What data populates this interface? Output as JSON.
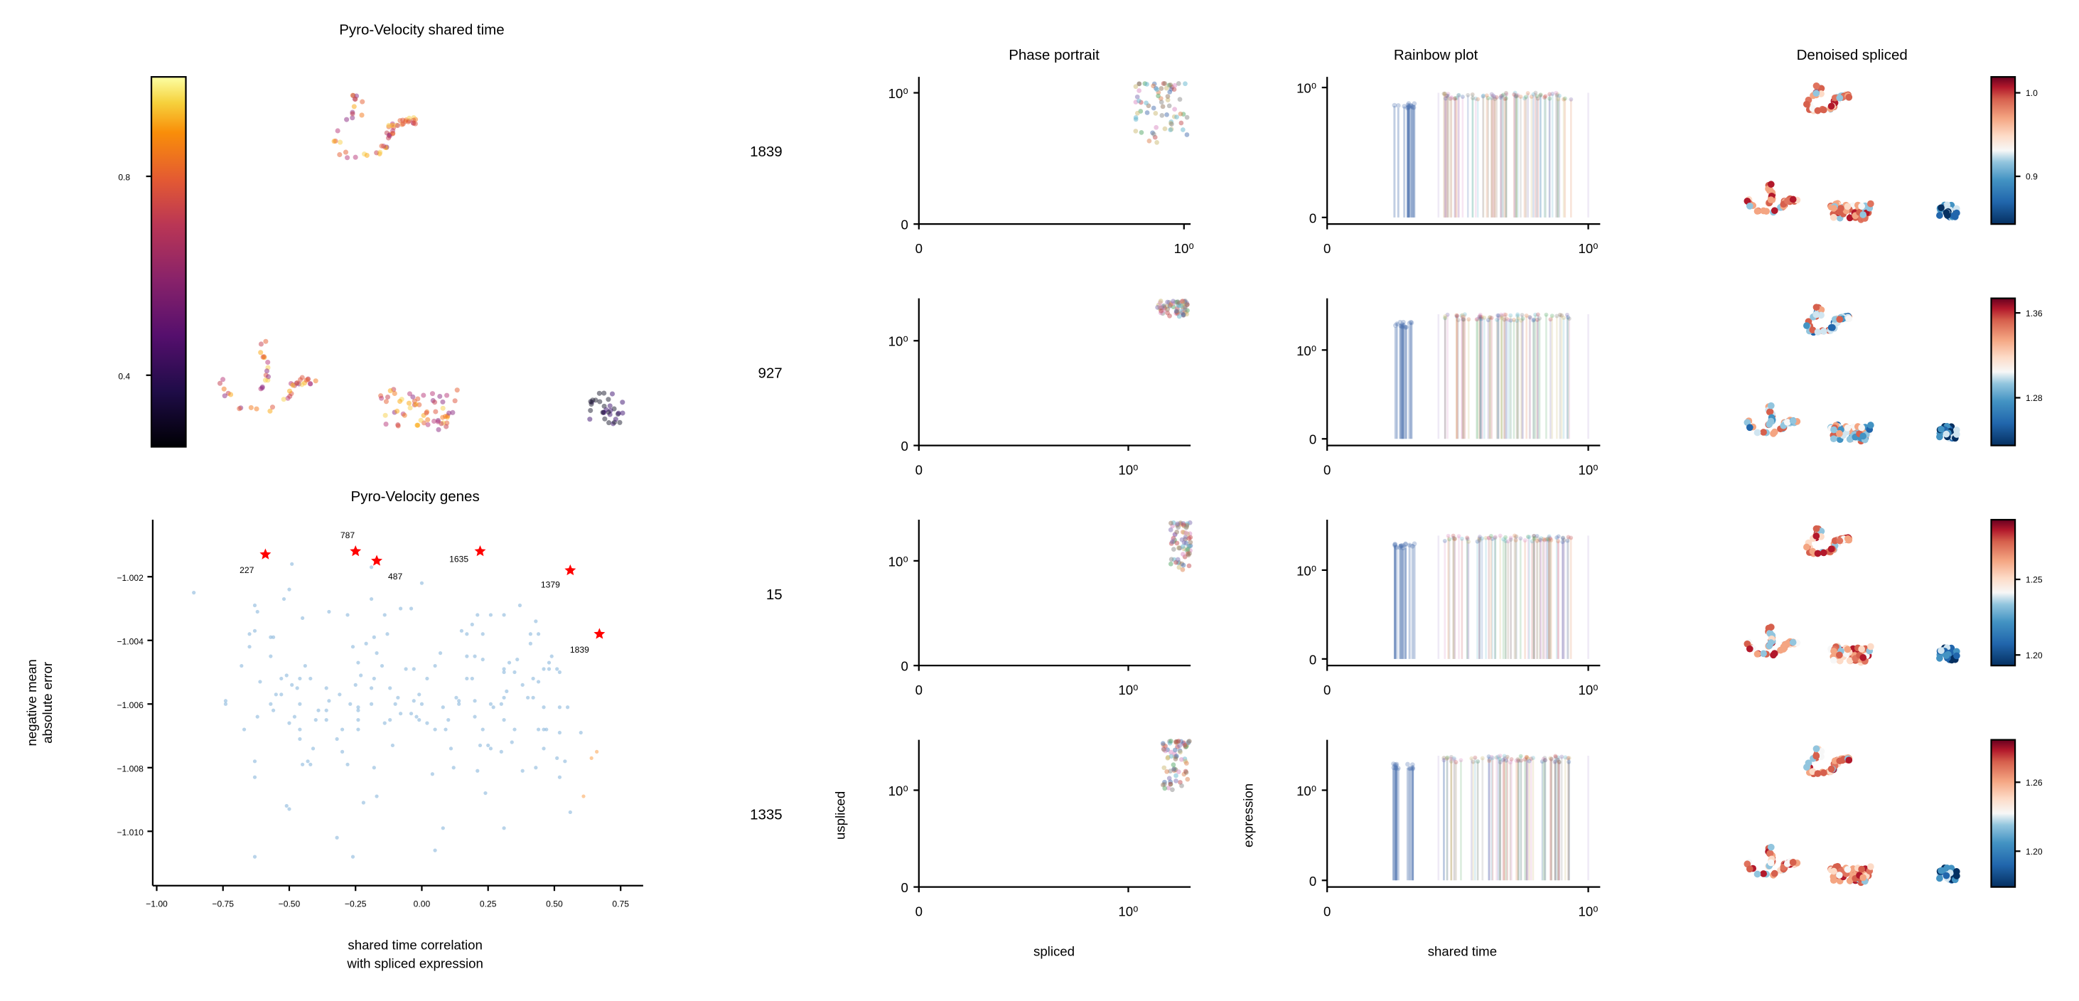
{
  "chart_data": [
    {
      "type": "scatter",
      "panel": "umap_shared_time",
      "title": "Pyro-Velocity shared time",
      "colorbar": {
        "colormap": "inferno",
        "ticks": [
          "0.8",
          "0.4"
        ]
      }
    },
    {
      "type": "scatter",
      "panel": "genes",
      "title": "Pyro-Velocity genes",
      "xlabel": [
        "shared time correlation",
        "with spliced expression"
      ],
      "ylabel": [
        "negative mean",
        "absolute error"
      ],
      "xlim": [
        -1.02,
        0.82
      ],
      "ylim": [
        -1.0118,
        -1.0004
      ],
      "xticks": [
        "-1.00",
        "-0.75",
        "-0.50",
        "-0.25",
        "0.00",
        "0.25",
        "0.50",
        "0.75"
      ],
      "xtick_values": [
        -1.0,
        -0.75,
        -0.5,
        -0.25,
        0.0,
        0.25,
        0.5,
        0.75
      ],
      "yticks": [
        "-1.002",
        "-1.004",
        "-1.006",
        "-1.008",
        "-1.010"
      ],
      "ytick_values": [
        -1.002,
        -1.004,
        -1.006,
        -1.008,
        -1.01
      ],
      "colors": {
        "default": "#7fb0d8",
        "selected": "#ff0000",
        "other": "#fdbf86"
      },
      "highlighted": [
        {
          "gene": "227",
          "x": -0.59,
          "y": -1.0013
        },
        {
          "gene": "787",
          "x": -0.25,
          "y": -1.0012
        },
        {
          "gene": "487",
          "x": -0.17,
          "y": -1.0015
        },
        {
          "gene": "1635",
          "x": 0.22,
          "y": -1.0012
        },
        {
          "gene": "1379",
          "x": 0.56,
          "y": -1.0018
        },
        {
          "gene": "1839",
          "x": 0.67,
          "y": -1.0038
        }
      ],
      "other_points": [
        [
          0.66,
          -1.0075
        ],
        [
          0.64,
          -1.0077
        ],
        [
          0.61,
          -1.0089
        ]
      ],
      "points": [
        [
          -0.86,
          -1.0025
        ],
        [
          -0.49,
          -1.0016
        ],
        [
          -0.5,
          -1.0024
        ],
        [
          -0.52,
          -1.0027
        ],
        [
          -0.63,
          -1.0029
        ],
        [
          -0.62,
          -1.0031
        ],
        [
          -0.35,
          -1.0031
        ],
        [
          -0.28,
          -1.0032
        ],
        [
          -0.45,
          -1.0033
        ],
        [
          -0.19,
          -1.0017
        ],
        [
          -0.19,
          -1.0027
        ],
        [
          -0.14,
          -1.0032
        ],
        [
          -0.08,
          -1.003
        ],
        [
          -0.04,
          -1.003
        ],
        [
          0.0,
          -1.0022
        ],
        [
          -0.65,
          -1.0038
        ],
        [
          -0.63,
          -1.0037
        ],
        [
          -0.57,
          -1.0039
        ],
        [
          -0.56,
          -1.0039
        ],
        [
          -0.65,
          -1.0042
        ],
        [
          -0.57,
          -1.0045
        ],
        [
          -0.68,
          -1.0048
        ],
        [
          -0.61,
          -1.0053
        ],
        [
          -0.51,
          -1.0051
        ],
        [
          -0.53,
          -1.0052
        ],
        [
          -0.49,
          -1.0054
        ],
        [
          -0.47,
          -1.0055
        ],
        [
          -0.44,
          -1.0048
        ],
        [
          -0.46,
          -1.0052
        ],
        [
          -0.42,
          -1.0052
        ],
        [
          -0.55,
          -1.0057
        ],
        [
          -0.53,
          -1.0057
        ],
        [
          -0.26,
          -1.0042
        ],
        [
          -0.24,
          -1.0047
        ],
        [
          -0.23,
          -1.0051
        ],
        [
          -0.25,
          -1.0054
        ],
        [
          -0.21,
          -1.0041
        ],
        [
          -0.18,
          -1.0039
        ],
        [
          -0.17,
          -1.0044
        ],
        [
          -0.15,
          -1.0048
        ],
        [
          -0.18,
          -1.0052
        ],
        [
          -0.13,
          -1.0038
        ],
        [
          -0.19,
          -1.0055
        ],
        [
          -0.12,
          -1.0055
        ],
        [
          -0.06,
          -1.0049
        ],
        [
          -0.03,
          -1.0049
        ],
        [
          0.02,
          -1.0052
        ],
        [
          0.05,
          -1.0048
        ],
        [
          0.07,
          -1.0044
        ],
        [
          -0.74,
          -1.0059
        ],
        [
          -0.74,
          -1.006
        ],
        [
          -0.62,
          -1.0064
        ],
        [
          -0.57,
          -1.006
        ],
        [
          -0.56,
          -1.0062
        ],
        [
          -0.46,
          -1.006
        ],
        [
          -0.48,
          -1.0064
        ],
        [
          -0.5,
          -1.0066
        ],
        [
          -0.36,
          -1.0055
        ],
        [
          -0.35,
          -1.0059
        ],
        [
          -0.39,
          -1.0062
        ],
        [
          -0.36,
          -1.0062
        ],
        [
          -0.4,
          -1.0065
        ],
        [
          -0.36,
          -1.0065
        ],
        [
          -0.31,
          -1.0057
        ],
        [
          -0.27,
          -1.006
        ],
        [
          -0.24,
          -1.0061
        ],
        [
          -0.24,
          -1.0062
        ],
        [
          -0.24,
          -1.0065
        ],
        [
          -0.19,
          -1.006
        ],
        [
          -0.14,
          -1.0066
        ],
        [
          -0.12,
          -1.0065
        ],
        [
          -0.09,
          -1.0058
        ],
        [
          -0.1,
          -1.006
        ],
        [
          -0.08,
          -1.0063
        ],
        [
          -0.04,
          -1.0063
        ],
        [
          -0.03,
          -1.0059
        ],
        [
          -0.01,
          -1.0057
        ],
        [
          0.0,
          -1.006
        ],
        [
          -0.02,
          -1.0064
        ],
        [
          -0.01,
          -1.0065
        ],
        [
          0.02,
          -1.0066
        ],
        [
          -0.67,
          -1.0068
        ],
        [
          -0.46,
          -1.0068
        ],
        [
          -0.3,
          -1.0068
        ],
        [
          -0.24,
          -1.0068
        ],
        [
          -0.46,
          -1.0071
        ],
        [
          -0.32,
          -1.0071
        ],
        [
          -0.41,
          -1.0074
        ],
        [
          -0.43,
          -1.0078
        ],
        [
          -0.3,
          -1.0075
        ],
        [
          -0.11,
          -1.0073
        ],
        [
          -0.63,
          -1.0078
        ],
        [
          -0.45,
          -1.0079
        ],
        [
          -0.42,
          -1.0079
        ],
        [
          -0.28,
          -1.0079
        ],
        [
          -0.18,
          -1.008
        ],
        [
          -0.63,
          -1.0083
        ],
        [
          -0.17,
          -1.0089
        ],
        [
          -0.22,
          -1.0091
        ],
        [
          -0.51,
          -1.0092
        ],
        [
          -0.5,
          -1.0093
        ],
        [
          -0.32,
          -1.0102
        ],
        [
          -0.63,
          -1.0108
        ],
        [
          -0.26,
          -1.0108
        ],
        [
          0.15,
          -1.0037
        ],
        [
          0.19,
          -1.0035
        ],
        [
          0.17,
          -1.0038
        ],
        [
          0.21,
          -1.0032
        ],
        [
          0.26,
          -1.0032
        ],
        [
          0.31,
          -1.0032
        ],
        [
          0.37,
          -1.0029
        ],
        [
          0.23,
          -1.0038
        ],
        [
          0.41,
          -1.0038
        ],
        [
          0.43,
          -1.0034
        ],
        [
          0.44,
          -1.0038
        ],
        [
          0.41,
          -1.0041
        ],
        [
          0.17,
          -1.0045
        ],
        [
          0.2,
          -1.0045
        ],
        [
          0.23,
          -1.0046
        ],
        [
          0.33,
          -1.0047
        ],
        [
          0.36,
          -1.0046
        ],
        [
          0.31,
          -1.0049
        ],
        [
          0.31,
          -1.005
        ],
        [
          0.35,
          -1.005
        ],
        [
          0.48,
          -1.0047
        ],
        [
          0.49,
          -1.0045
        ],
        [
          0.46,
          -1.0049
        ],
        [
          0.48,
          -1.0049
        ],
        [
          0.51,
          -1.0049
        ],
        [
          0.52,
          -1.005
        ],
        [
          0.17,
          -1.0052
        ],
        [
          0.19,
          -1.0052
        ],
        [
          0.42,
          -1.0052
        ],
        [
          0.44,
          -1.0053
        ],
        [
          0.38,
          -1.0054
        ],
        [
          0.32,
          -1.0056
        ],
        [
          0.13,
          -1.0058
        ],
        [
          0.14,
          -1.0059
        ],
        [
          0.2,
          -1.0059
        ],
        [
          0.26,
          -1.006
        ],
        [
          0.27,
          -1.0061
        ],
        [
          0.3,
          -1.006
        ],
        [
          0.31,
          -1.0058
        ],
        [
          0.4,
          -1.0058
        ],
        [
          0.42,
          -1.0058
        ],
        [
          0.46,
          -1.0061
        ],
        [
          0.52,
          -1.0061
        ],
        [
          0.55,
          -1.0061
        ],
        [
          0.08,
          -1.0061
        ],
        [
          0.14,
          -1.006
        ],
        [
          0.2,
          -1.0064
        ],
        [
          0.1,
          -1.0065
        ],
        [
          0.31,
          -1.0065
        ],
        [
          0.09,
          -1.0068
        ],
        [
          0.05,
          -1.0068
        ],
        [
          0.23,
          -1.0068
        ],
        [
          0.35,
          -1.0068
        ],
        [
          0.44,
          -1.0068
        ],
        [
          0.46,
          -1.0068
        ],
        [
          0.47,
          -1.0068
        ],
        [
          0.52,
          -1.0069
        ],
        [
          0.6,
          -1.0069
        ],
        [
          0.11,
          -1.0074
        ],
        [
          0.22,
          -1.0073
        ],
        [
          0.25,
          -1.0073
        ],
        [
          0.26,
          -1.0074
        ],
        [
          0.3,
          -1.0075
        ],
        [
          0.34,
          -1.0072
        ],
        [
          0.46,
          -1.0074
        ],
        [
          0.51,
          -1.0077
        ],
        [
          0.54,
          -1.0078
        ],
        [
          0.12,
          -1.008
        ],
        [
          0.21,
          -1.0081
        ],
        [
          0.43,
          -1.008
        ],
        [
          0.38,
          -1.0081
        ],
        [
          0.52,
          -1.0083
        ],
        [
          0.04,
          -1.0082
        ],
        [
          0.24,
          -1.0088
        ],
        [
          0.56,
          -1.0094
        ],
        [
          0.08,
          -1.0099
        ],
        [
          0.31,
          -1.0099
        ],
        [
          0.05,
          -1.0106
        ]
      ]
    },
    {
      "type": "scatter",
      "panel": "phase_portrait",
      "title": "Phase portrait",
      "xlabel": "spliced",
      "ylabel": "uspliced",
      "genes": [
        "1839",
        "927",
        "15",
        "1335"
      ],
      "yticks": [
        "10⁰",
        "0"
      ],
      "xticks": [
        "0",
        "10⁰"
      ]
    },
    {
      "type": "line",
      "panel": "rainbow_plot",
      "title": "Rainbow plot",
      "xlabel": "shared time",
      "ylabel": "expression",
      "yticks": [
        "10⁰",
        "0"
      ],
      "xticks": [
        "0",
        "10⁰"
      ]
    },
    {
      "type": "scatter",
      "panel": "denoised_spliced",
      "title": "Denoised spliced",
      "colormap": "RdBu_r",
      "colorbar_ticks": [
        [
          "1.0",
          "0.9"
        ],
        [
          "1.36",
          "1.28"
        ],
        [
          "1.25",
          "1.20"
        ],
        [
          "1.26",
          "1.20"
        ]
      ]
    }
  ]
}
